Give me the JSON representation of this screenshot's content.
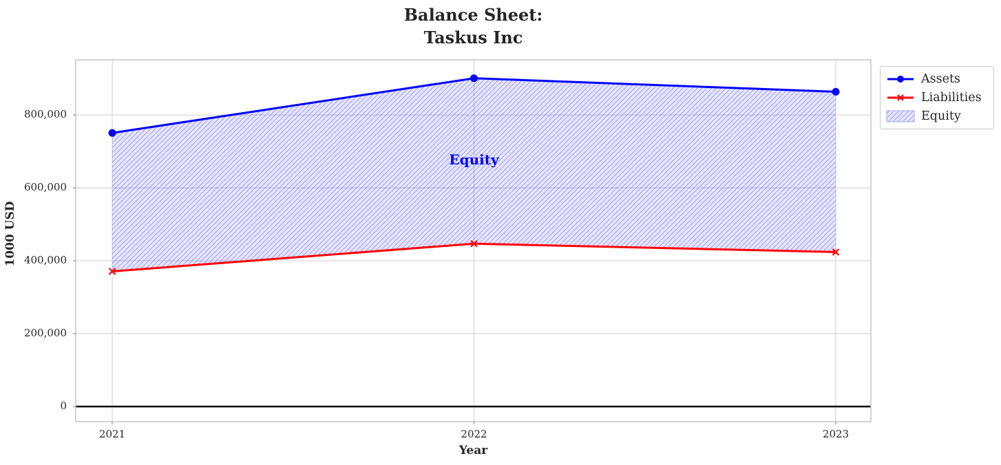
{
  "title": {
    "line1": "Balance Sheet:",
    "line2": "Taskus Inc"
  },
  "chart_data": {
    "type": "line",
    "x": [
      2021,
      2022,
      2023
    ],
    "categories": [
      "2021",
      "2022",
      "2023"
    ],
    "series": [
      {
        "name": "Assets",
        "values": [
          751000,
          901000,
          864000
        ],
        "color": "#0000ff",
        "marker": "circle"
      },
      {
        "name": "Liabilities",
        "values": [
          371000,
          447000,
          424000
        ],
        "color": "#ff0000",
        "marker": "x"
      }
    ],
    "area": {
      "name": "Equity",
      "between": [
        "Assets",
        "Liabilities"
      ],
      "fill": "rgba(0,0,255,0.10)",
      "hatch": "///",
      "hatch_color": "rgba(80,80,230,0.45)"
    },
    "annotation": {
      "text": "Equity",
      "x": 2022,
      "y": 674000,
      "color": "#0000ff"
    },
    "xlabel": "Year",
    "ylabel": "1000 USD",
    "ylim": [
      -41500,
      951500
    ],
    "yticks": [
      0,
      200000,
      400000,
      600000,
      800000
    ],
    "ytick_labels": [
      "0",
      "200,000",
      "400,000",
      "600,000",
      "800,000"
    ],
    "grid": true,
    "zero_line": true,
    "legend": {
      "position": "outside-upper-right",
      "items": [
        "Assets",
        "Liabilities",
        "Equity"
      ]
    }
  },
  "colors": {
    "grid": "#d8d8d8",
    "spine": "#c9c9c9",
    "tick": "#9a9a9a",
    "zero_line": "#000000",
    "text": "#262626"
  }
}
